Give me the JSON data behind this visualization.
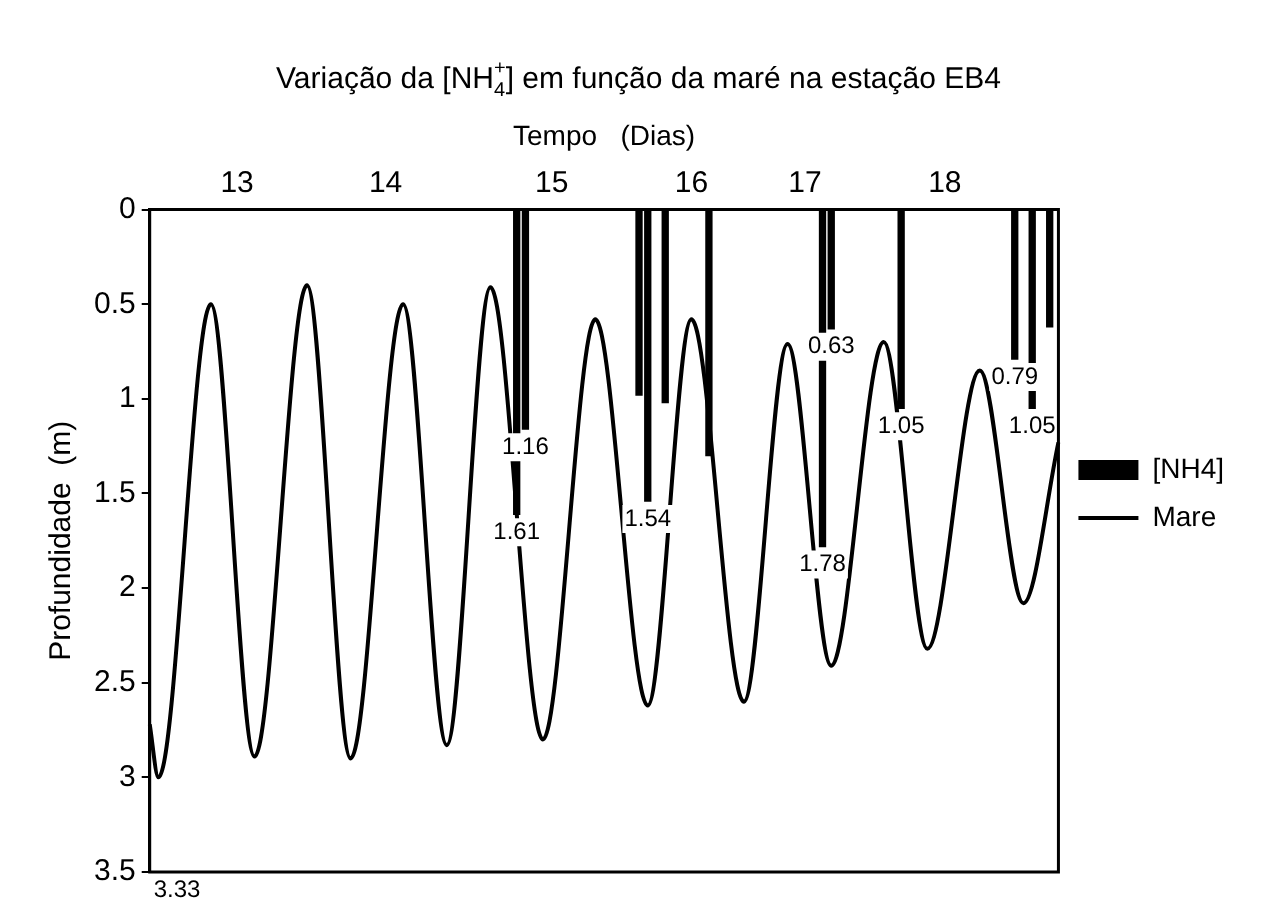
{
  "chart_data": {
    "type": "bar",
    "title": "Variação da [NH$_{4}$$^{+}$] em função da maré na estação EB4",
    "xlabel": "Tempo   (Dias)",
    "ylabel": "Profundidade  (m)",
    "categories": [
      null,
      null,
      null,
      null,
      null,
      null,
      null,
      null,
      null,
      null,
      "13",
      null,
      null,
      null,
      null,
      null,
      null,
      null,
      null,
      null,
      null,
      null,
      null,
      null,
      null,
      null,
      null,
      "14",
      null,
      null,
      null,
      null,
      null,
      null,
      null,
      null,
      null,
      null,
      null,
      null,
      null,
      null,
      null,
      null,
      null,
      null,
      "15",
      null,
      null,
      null,
      null,
      null,
      null,
      null,
      null,
      null,
      null,
      null,
      null,
      null,
      null,
      null,
      "16",
      null,
      null,
      null,
      null,
      null,
      null,
      null,
      null,
      null,
      null,
      null,
      null,
      "17",
      null,
      null,
      null,
      null,
      null,
      null,
      null,
      null,
      null,
      null,
      null,
      null,
      null,
      null,
      null,
      "18",
      null,
      null,
      null,
      null,
      null,
      null,
      null,
      null,
      null,
      null,
      null,
      null,
      null
    ],
    "series": [
      {
        "name": "[NH4]",
        "color": "#000000",
        "values": [
          null,
          null,
          null,
          null,
          null,
          null,
          null,
          null,
          null,
          null,
          null,
          null,
          null,
          null,
          null,
          null,
          null,
          null,
          null,
          null,
          null,
          null,
          null,
          null,
          null,
          null,
          null,
          null,
          null,
          null,
          null,
          null,
          null,
          null,
          null,
          null,
          null,
          null,
          null,
          null,
          null,
          null,
          1.61,
          1.16,
          null,
          null,
          null,
          null,
          null,
          null,
          null,
          null,
          null,
          null,
          null,
          null,
          0.98,
          1.54,
          null,
          1.02,
          null,
          null,
          null,
          null,
          1.3,
          null,
          null,
          null,
          null,
          null,
          null,
          null,
          null,
          null,
          null,
          null,
          null,
          1.78,
          0.63,
          null,
          null,
          null,
          null,
          null,
          null,
          null,
          1.05,
          null,
          null,
          null,
          null,
          null,
          null,
          null,
          null,
          null,
          null,
          null,
          null,
          0.79,
          null,
          1.05,
          null,
          0.62,
          null
        ],
        "value_labels": [
          null,
          null,
          null,
          null,
          null,
          null,
          null,
          null,
          null,
          null,
          null,
          null,
          null,
          null,
          null,
          null,
          null,
          null,
          null,
          null,
          null,
          null,
          null,
          null,
          null,
          null,
          null,
          null,
          null,
          null,
          null,
          null,
          null,
          null,
          null,
          null,
          null,
          null,
          null,
          null,
          null,
          null,
          "1.61",
          "1.16",
          null,
          null,
          null,
          null,
          null,
          null,
          null,
          null,
          null,
          null,
          null,
          null,
          null,
          "1.54",
          null,
          null,
          null,
          null,
          null,
          null,
          null,
          null,
          null,
          null,
          null,
          null,
          null,
          null,
          null,
          null,
          null,
          null,
          null,
          "1.78",
          "0.63",
          null,
          null,
          null,
          null,
          null,
          null,
          null,
          "1.05",
          null,
          null,
          null,
          null,
          null,
          null,
          null,
          null,
          null,
          null,
          null,
          null,
          "0.79",
          null,
          "1.05",
          null,
          null,
          null
        ]
      },
      {
        "name": "Mare",
        "type": "line",
        "color": "#000000",
        "values": [
          2.72,
          3.0,
          null,
          null,
          null,
          null,
          null,
          0.5,
          null,
          null,
          null,
          null,
          2.89,
          null,
          null,
          null,
          null,
          null,
          0.4,
          null,
          null,
          null,
          null,
          2.9,
          null,
          null,
          null,
          null,
          null,
          0.5,
          null,
          null,
          null,
          null,
          2.83,
          null,
          null,
          null,
          null,
          0.41,
          null,
          null,
          null,
          null,
          null,
          2.8,
          null,
          null,
          null,
          null,
          null,
          0.58,
          null,
          null,
          null,
          null,
          null,
          2.62,
          null,
          null,
          null,
          null,
          0.58,
          null,
          null,
          null,
          null,
          null,
          2.6,
          null,
          null,
          null,
          null,
          0.71,
          null,
          null,
          null,
          null,
          2.41,
          null,
          null,
          null,
          null,
          null,
          0.7,
          null,
          null,
          null,
          null,
          2.32,
          null,
          null,
          null,
          null,
          null,
          0.85,
          null,
          null,
          null,
          null,
          2.08,
          null,
          null,
          null,
          1.23
        ]
      }
    ],
    "ylim": [
      3.5,
      0
    ],
    "yticks": [
      0,
      0.5,
      1,
      1.5,
      2,
      2.5,
      3,
      3.5
    ],
    "grid": false,
    "legend": "right",
    "marker": "none",
    "line_style": "solid",
    "annotations": [
      "3.33"
    ]
  }
}
